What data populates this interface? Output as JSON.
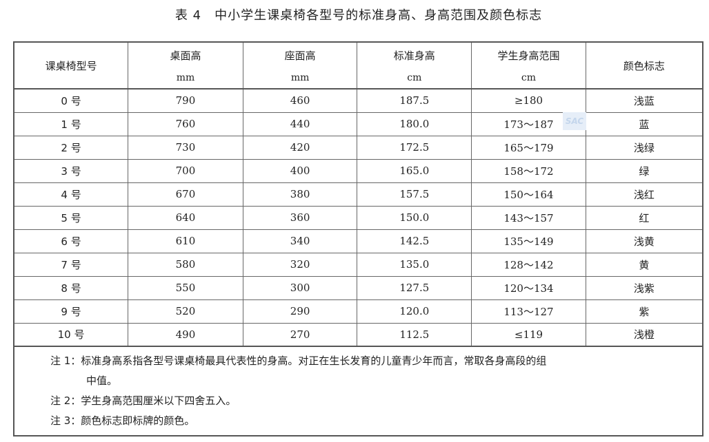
{
  "title": "表 4　中小学生课桌椅各型号的标准身高、身高范围及颜色标志",
  "headers": [
    {
      "label": "课桌椅型号",
      "unit": ""
    },
    {
      "label": "桌面高",
      "unit": "mm"
    },
    {
      "label": "座面高",
      "unit": "mm"
    },
    {
      "label": "标准身高",
      "unit": "cm"
    },
    {
      "label": "学生身高范围",
      "unit": "cm"
    },
    {
      "label": "颜色标志",
      "unit": ""
    }
  ],
  "rows": [
    [
      "0 号",
      "790",
      "460",
      "187.5",
      "≥180",
      "浅蓝"
    ],
    [
      "1 号",
      "760",
      "440",
      "180.0",
      "173～187",
      "蓝"
    ],
    [
      "2 号",
      "730",
      "420",
      "172.5",
      "165～179",
      "浅绿"
    ],
    [
      "3 号",
      "700",
      "400",
      "165.0",
      "158～172",
      "绿"
    ],
    [
      "4 号",
      "670",
      "380",
      "157.5",
      "150～164",
      "浅红"
    ],
    [
      "5 号",
      "640",
      "360",
      "150.0",
      "143～157",
      "红"
    ],
    [
      "6 号",
      "610",
      "340",
      "142.5",
      "135～149",
      "浅黄"
    ],
    [
      "7 号",
      "580",
      "320",
      "135.0",
      "128～142",
      "黄"
    ],
    [
      "8 号",
      "550",
      "300",
      "127.5",
      "120～134",
      "浅紫"
    ],
    [
      "9 号",
      "520",
      "290",
      "120.0",
      "113～127",
      "紫"
    ],
    [
      "10 号",
      "490",
      "270",
      "112.5",
      "≤119",
      "浅橙"
    ]
  ],
  "notes": {
    "n1a": "注 1：标准身高系指各型号课桌椅最具代表性的身高。对正在生长发育的儿童青少年而言，常取各身高段的组",
    "n1b": "中值。",
    "n2": "注 2：学生身高范围厘米以下四舍五入。",
    "n3": "注 3：颜色标志即标牌的颜色。"
  },
  "watermark": "SAC"
}
